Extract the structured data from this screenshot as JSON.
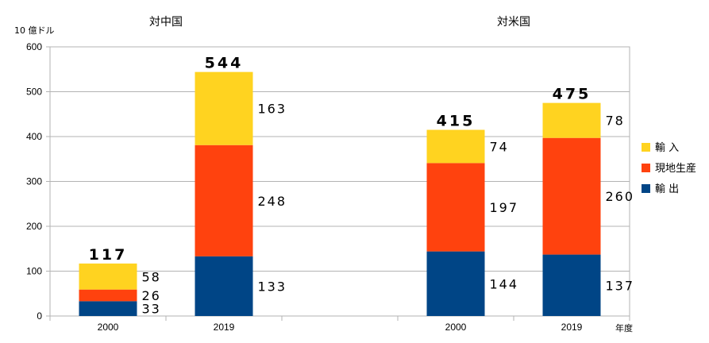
{
  "chart_data": {
    "type": "bar",
    "stacked": true,
    "yunit": "10 億ドル",
    "xunit": "年度",
    "groups": [
      "対中国",
      "対米国"
    ],
    "categories": [
      "2000",
      "2019",
      "2000",
      "2019"
    ],
    "category_group": [
      0,
      0,
      1,
      1
    ],
    "series": [
      {
        "name": "輸 出",
        "color": "#004586",
        "values": [
          33,
          133,
          144,
          137
        ]
      },
      {
        "name": "現地生産",
        "color": "#ff420e",
        "values": [
          26,
          248,
          197,
          260
        ]
      },
      {
        "name": "輸 入",
        "color": "#ffd320",
        "values": [
          58,
          163,
          74,
          78
        ]
      }
    ],
    "totals": [
      117,
      544,
      415,
      475
    ],
    "ylim": [
      0,
      600
    ],
    "yticks": [
      0,
      100,
      200,
      300,
      400,
      500,
      600
    ],
    "grid": true,
    "legend_position": "right"
  }
}
